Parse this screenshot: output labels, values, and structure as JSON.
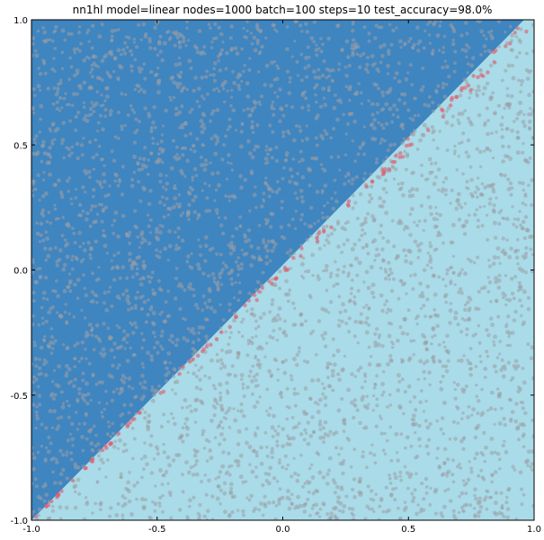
{
  "chart_data": {
    "type": "scatter",
    "title": "nn1hl model=linear nodes=1000 batch=100 steps=10 test_accuracy=98.0%",
    "xlabel": "",
    "ylabel": "",
    "xlim": [
      -1.0,
      1.0
    ],
    "ylim": [
      -1.0,
      1.0
    ],
    "x_ticks": [
      "-1.0",
      "-0.5",
      "0.0",
      "0.5",
      "1.0"
    ],
    "y_ticks": [
      "1.0",
      "0.5",
      "0.0",
      "-0.5",
      "-1.0"
    ],
    "grid": false,
    "legend": "none",
    "decision_boundary": {
      "description_values": {
        "start": [
          -1.0,
          -1.0
        ],
        "end": [
          0.96,
          1.0
        ]
      }
    },
    "regions": [
      {
        "side": "upper-left",
        "color": "#3f85c0"
      },
      {
        "side": "lower-right",
        "color": "#a9dbe8"
      }
    ],
    "series": [
      {
        "point_color": "#9a9fa6",
        "distribution": "uniform-random"
      },
      {
        "point_color": "#e06070",
        "distribution": "near-boundary"
      }
    ]
  }
}
